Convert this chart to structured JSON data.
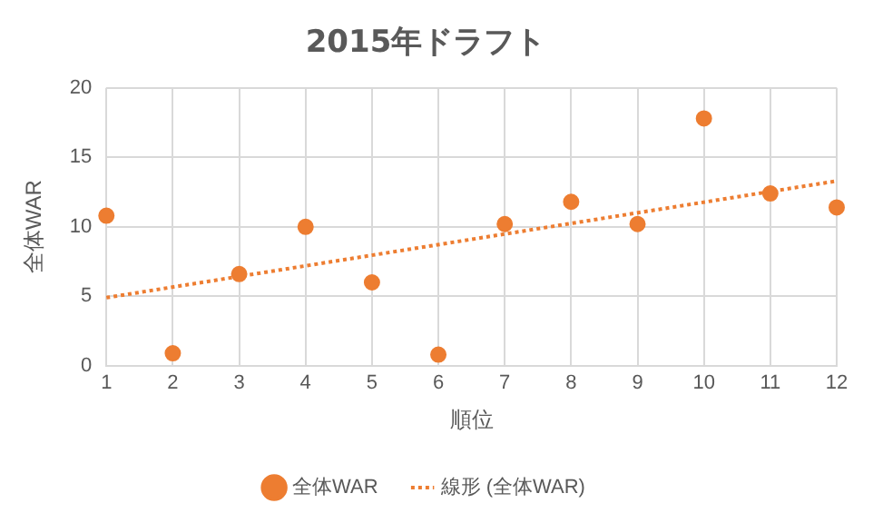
{
  "chart_data": {
    "type": "scatter",
    "title": "2015年ドラフト",
    "xlabel": "順位",
    "ylabel": "全体WAR",
    "x": [
      1,
      2,
      3,
      4,
      5,
      6,
      7,
      8,
      9,
      10,
      11,
      12
    ],
    "series": [
      {
        "name": "全体WAR",
        "type": "scatter",
        "color": "#ed7d31",
        "marker": "circle",
        "values": [
          10.8,
          0.9,
          6.6,
          10.0,
          6.0,
          0.8,
          10.2,
          11.8,
          10.2,
          17.8,
          12.4,
          11.4
        ]
      },
      {
        "name": "線形 (全体WAR)",
        "type": "line",
        "color": "#ed7d31",
        "line_style": "dotted",
        "marker": "none",
        "x": [
          1,
          12
        ],
        "values": [
          4.9,
          13.3
        ]
      }
    ],
    "xlim": [
      1,
      12
    ],
    "xticks": [
      1,
      2,
      3,
      4,
      5,
      6,
      7,
      8,
      9,
      10,
      11,
      12
    ],
    "ylim": [
      0,
      20
    ],
    "yticks": [
      0,
      5,
      10,
      15,
      20
    ],
    "grid": true,
    "legend": "bottom"
  }
}
